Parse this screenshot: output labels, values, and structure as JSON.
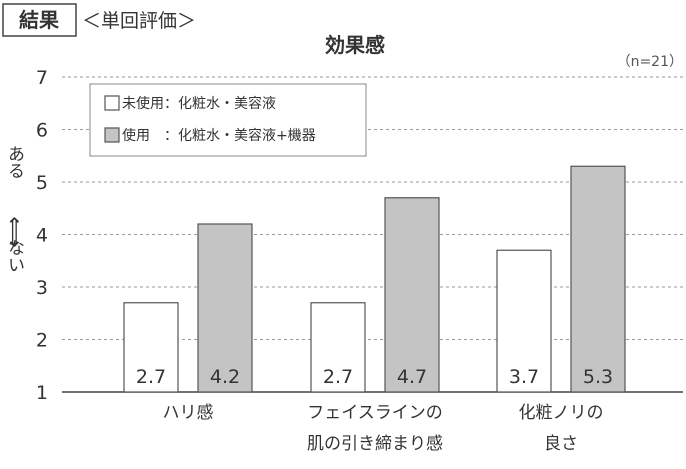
{
  "header": {
    "section_label": "結果",
    "subtitle": "＜単回評価＞"
  },
  "chart_data": {
    "type": "bar",
    "title": "効果感",
    "sample_note": "（n=21）",
    "ylabel_top": "ある",
    "ylabel_arrow": "⟺",
    "ylabel_bottom": "ない",
    "xlabel": "",
    "ylim": [
      1,
      7
    ],
    "yticks": [
      1,
      2,
      3,
      4,
      5,
      6,
      7
    ],
    "grid": true,
    "grid_style": "dashed",
    "legend_position": "top-left",
    "categories": [
      [
        "ハリ感"
      ],
      [
        "フェイスラインの",
        "肌の引き締まり感"
      ],
      [
        "化粧ノリの",
        "良さ"
      ]
    ],
    "series": [
      {
        "name": "未使用：化粧水・美容液",
        "values": [
          2.7,
          2.7,
          3.7
        ],
        "value_labels": [
          "2.7",
          "2.7",
          "3.7"
        ],
        "color": "#ffffff",
        "stroke": "#555555"
      },
      {
        "name": "使用　：化粧水・美容液+機器",
        "values": [
          4.2,
          4.7,
          5.3
        ],
        "value_labels": [
          "4.2",
          "4.7",
          "5.3"
        ],
        "color": "#c4c4c4",
        "stroke": "#555555"
      }
    ]
  }
}
